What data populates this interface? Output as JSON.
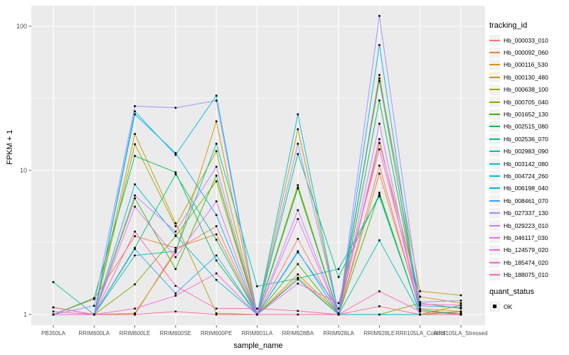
{
  "figure": {
    "bg": "#FFFFFF",
    "panel_bg": "#EBEBEB",
    "grid_color": "#FFFFFF",
    "tick_color": "#333333",
    "tick_label_color": "#4D4D4D",
    "point_color": "#000000"
  },
  "chart_data": {
    "type": "line",
    "title": "",
    "xlabel": "sample_name",
    "ylabel": "FPKM + 1",
    "x_scale": "categorical",
    "y_scale": "log10",
    "ylim": [
      0.85,
      150
    ],
    "y_ticks": [
      1,
      10,
      100
    ],
    "y_tick_labels": [
      "1",
      "10",
      "100"
    ],
    "y_minor_ticks": [
      3.162,
      31.62
    ],
    "grid": true,
    "legend_position": "right",
    "categories": [
      "PB350LA",
      "RRIM600LA",
      "RRIM600LE",
      "RRIM600SE",
      "RRIM600PE",
      "RRIM901LA",
      "RRIM928BA",
      "RRIM928LA",
      "RRIM928LE",
      "RRII105LA_Control",
      "RRII105LA_Stressed"
    ],
    "series": [
      {
        "name": "Hb_000033_010",
        "color": "#F8766D",
        "values": [
          1.0,
          1.0,
          1.0,
          2.8,
          4.1,
          1.0,
          3.35,
          1.0,
          10.8,
          1.05,
          1.02
        ]
      },
      {
        "name": "Hb_000092_060",
        "color": "#EA8331",
        "values": [
          1.0,
          1.28,
          3.5,
          2.9,
          3.6,
          1.0,
          1.8,
          1.0,
          9.5,
          1.1,
          1.05
        ]
      },
      {
        "name": "Hb_000116_530",
        "color": "#D89000",
        "values": [
          1.0,
          1.0,
          1.02,
          2.7,
          21.9,
          1.0,
          1.9,
          1.02,
          15.5,
          1.33,
          1.2
        ]
      },
      {
        "name": "Hb_000130_480",
        "color": "#C09B00",
        "values": [
          1.0,
          1.0,
          17.9,
          4.3,
          1.02,
          1.0,
          19.3,
          1.0,
          43.5,
          1.45,
          1.36
        ]
      },
      {
        "name": "Hb_000638_100",
        "color": "#A3A500",
        "values": [
          1.0,
          1.0,
          15.2,
          4.1,
          13.6,
          1.0,
          7.9,
          1.0,
          46.0,
          1.0,
          1.16
        ]
      },
      {
        "name": "Hb_000705_040",
        "color": "#7CAE00",
        "values": [
          1.0,
          1.0,
          1.62,
          3.5,
          8.4,
          1.0,
          7.6,
          1.0,
          1.0,
          1.2,
          1.1
        ]
      },
      {
        "name": "Hb_001652_130",
        "color": "#39B600",
        "values": [
          1.0,
          1.0,
          6.4,
          2.07,
          9.2,
          1.0,
          2.24,
          1.0,
          7.0,
          1.0,
          1.05
        ]
      },
      {
        "name": "Hb_002515_080",
        "color": "#00BB4E",
        "values": [
          1.0,
          1.3,
          12.6,
          9.7,
          2.37,
          1.0,
          7.5,
          1.0,
          30.6,
          1.08,
          1.0
        ]
      },
      {
        "name": "Hb_002536_070",
        "color": "#00BF7D",
        "values": [
          1.0,
          1.0,
          2.9,
          9.4,
          3.3,
          1.0,
          13.0,
          1.82,
          6.8,
          1.0,
          1.0
        ]
      },
      {
        "name": "Hb_002983_090",
        "color": "#00C1A3",
        "values": [
          1.68,
          1.0,
          2.57,
          2.75,
          15.3,
          1.57,
          1.78,
          2.07,
          6.6,
          1.0,
          1.0
        ]
      },
      {
        "name": "Hb_003142_080",
        "color": "#00BFC4",
        "values": [
          1.0,
          1.0,
          8.0,
          3.55,
          1.74,
          1.0,
          1.75,
          1.0,
          3.27,
          1.0,
          1.0
        ]
      },
      {
        "name": "Hb_004724_260",
        "color": "#00BAE0",
        "values": [
          1.0,
          1.0,
          25.7,
          12.8,
          33.0,
          1.0,
          24.5,
          1.0,
          1.0,
          1.0,
          1.0
        ]
      },
      {
        "name": "Hb_006198_040",
        "color": "#00B0F6",
        "values": [
          1.0,
          1.0,
          24.5,
          13.2,
          4.9,
          1.0,
          2.75,
          1.0,
          74.0,
          1.0,
          1.0
        ]
      },
      {
        "name": "Hb_008461_070",
        "color": "#35A2FF",
        "values": [
          1.12,
          1.0,
          2.85,
          1.4,
          2.57,
          1.0,
          2.7,
          1.1,
          41.7,
          1.15,
          1.12
        ]
      },
      {
        "name": "Hb_027337_130",
        "color": "#9590FF",
        "values": [
          1.0,
          1.15,
          27.9,
          27.2,
          30.5,
          1.0,
          15.3,
          1.0,
          118.0,
          1.22,
          1.25
        ]
      },
      {
        "name": "Hb_029223_010",
        "color": "#C77CFF",
        "values": [
          1.0,
          1.0,
          6.7,
          3.76,
          10.6,
          1.0,
          5.3,
          1.0,
          21.1,
          1.0,
          1.0
        ]
      },
      {
        "name": "Hb_046117_030",
        "color": "#E76BF3",
        "values": [
          1.0,
          1.0,
          5.6,
          2.5,
          6.1,
          1.0,
          4.6,
          1.0,
          16.5,
          1.0,
          1.0
        ]
      },
      {
        "name": "Hb_124579_020",
        "color": "#FA62DB",
        "values": [
          1.0,
          1.0,
          1.1,
          1.35,
          1.93,
          1.0,
          1.64,
          1.2,
          14.0,
          1.18,
          1.16
        ]
      },
      {
        "name": "Hb_185474_020",
        "color": "#FF62BC",
        "values": [
          1.05,
          1.0,
          3.76,
          1.58,
          1.1,
          1.1,
          1.06,
          1.0,
          1.45,
          1.05,
          1.0
        ]
      },
      {
        "name": "Hb_188075_010",
        "color": "#FF6A98",
        "values": [
          1.12,
          1.0,
          1.0,
          1.05,
          1.0,
          1.0,
          1.0,
          1.0,
          1.14,
          1.0,
          1.0
        ]
      }
    ],
    "legend": {
      "tracking_title": "tracking_id",
      "quant_title": "quant_status",
      "quant_items": [
        {
          "label": "OK"
        }
      ]
    }
  }
}
